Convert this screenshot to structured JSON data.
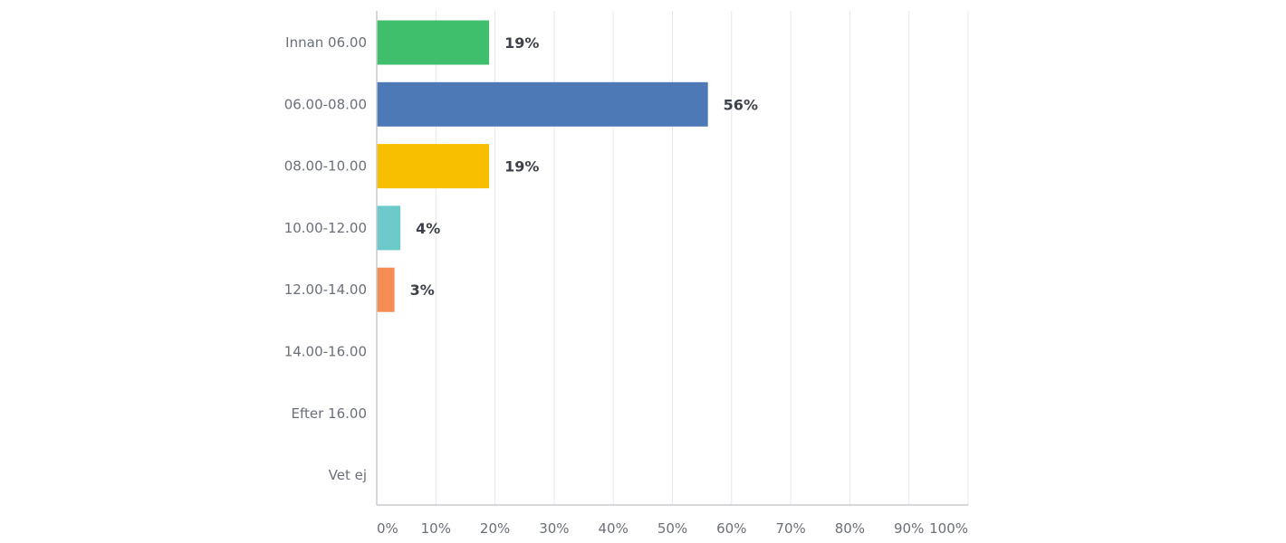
{
  "chart_data": {
    "type": "bar",
    "orientation": "horizontal",
    "categories": [
      "Innan 06.00",
      "06.00-08.00",
      "08.00-10.00",
      "10.00-12.00",
      "12.00-14.00",
      "14.00-16.00",
      "Efter 16.00",
      "Vet ej"
    ],
    "values": [
      19,
      56,
      19,
      4,
      3,
      0,
      0,
      0
    ],
    "value_labels": [
      "19%",
      "56%",
      "19%",
      "4%",
      "3%",
      "",
      "",
      ""
    ],
    "bar_colors": [
      "#3fbe6c",
      "#4e79b7",
      "#f7bf00",
      "#6ccacb",
      "#f58d55",
      "#cccccc",
      "#cccccc",
      "#cccccc"
    ],
    "xlim": [
      0,
      100
    ],
    "x_ticks": [
      "0%",
      "10%",
      "20%",
      "30%",
      "40%",
      "50%",
      "60%",
      "70%",
      "80%",
      "90%",
      "100%"
    ],
    "grid": true,
    "legend": "none"
  }
}
